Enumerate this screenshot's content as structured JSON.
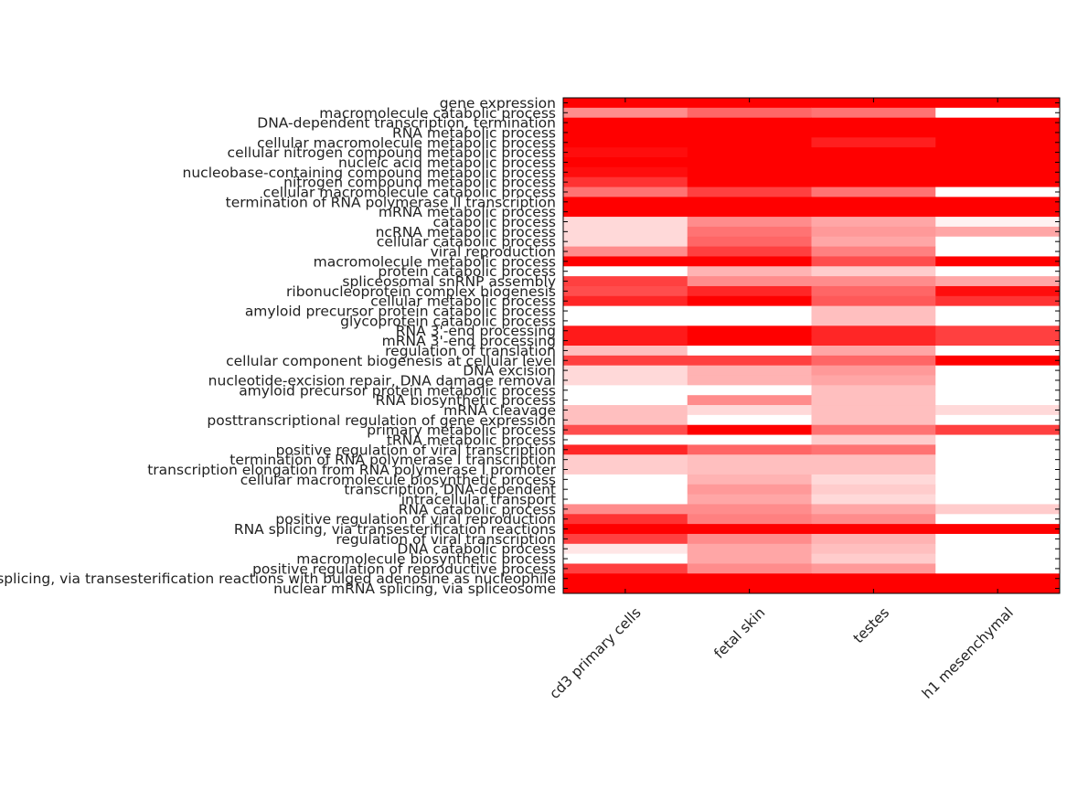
{
  "chart_data": {
    "type": "heatmap",
    "title": "",
    "xlabel": "",
    "ylabel": "",
    "color_low": "#ffffff",
    "color_high": "#ff0000",
    "value_range": [
      0,
      1
    ],
    "grid": false,
    "columns": [
      "cd3 primary cells",
      "fetal skin",
      "testes",
      "h1 mesenchymal"
    ],
    "rows": [
      "gene expression",
      "macromolecule catabolic process",
      "DNA-dependent transcription, termination",
      "RNA metabolic process",
      "cellular macromolecule metabolic process",
      "cellular nitrogen compound metabolic process",
      "nucleic acid metabolic process",
      "nucleobase-containing compound metabolic process",
      "nitrogen compound metabolic process",
      "cellular macromolecule catabolic process",
      "termination of RNA polymerase II transcription",
      "mRNA metabolic process",
      "catabolic process",
      "ncRNA metabolic process",
      "cellular catabolic process",
      "viral reproduction",
      "macromolecule metabolic process",
      "protein catabolic process",
      "spliceosomal snRNP assembly",
      "ribonucleoprotein complex biogenesis",
      "cellular metabolic process",
      "amyloid precursor protein catabolic process",
      "glycoprotein catabolic process",
      "RNA 3'-end processing",
      "mRNA 3'-end processing",
      "regulation of translation",
      "cellular component biogenesis at cellular level",
      "DNA excision",
      "nucleotide-excision repair, DNA damage removal",
      "amyloid precursor protein metabolic process",
      "RNA biosynthetic process",
      "mRNA cleavage",
      "posttranscriptional regulation of gene expression",
      "primary metabolic process",
      "tRNA metabolic process",
      "positive regulation of viral transcription",
      "termination of RNA polymerase I transcription",
      "transcription elongation from RNA polymerase I promoter",
      "cellular macromolecule biosynthetic process",
      "transcription, DNA-dependent",
      "intracellular transport",
      "RNA catabolic process",
      "positive regulation of viral reproduction",
      "RNA splicing, via transesterification reactions",
      "regulation of viral transcription",
      "DNA catabolic process",
      "macromolecule biosynthetic process",
      "positive regulation of reproductive process",
      "RNA splicing, via transesterification reactions with bulged adenosine as nucleophile",
      "nuclear mRNA splicing, via spliceosome"
    ],
    "values": [
      [
        1.0,
        1.0,
        1.0,
        1.0
      ],
      [
        0.45,
        0.6,
        0.55,
        0.0
      ],
      [
        1.0,
        1.0,
        1.0,
        1.0
      ],
      [
        1.0,
        1.0,
        1.0,
        1.0
      ],
      [
        1.0,
        1.0,
        0.88,
        1.0
      ],
      [
        0.95,
        1.0,
        1.0,
        1.0
      ],
      [
        1.0,
        1.0,
        1.0,
        1.0
      ],
      [
        0.95,
        1.0,
        1.0,
        1.0
      ],
      [
        0.8,
        1.0,
        1.0,
        1.0
      ],
      [
        0.55,
        0.75,
        0.55,
        0.0
      ],
      [
        1.0,
        1.0,
        1.0,
        1.0
      ],
      [
        1.0,
        1.0,
        1.0,
        1.0
      ],
      [
        0.15,
        0.45,
        0.35,
        0.05
      ],
      [
        0.15,
        0.55,
        0.4,
        0.35
      ],
      [
        0.15,
        0.6,
        0.35,
        0.0
      ],
      [
        0.45,
        0.75,
        0.5,
        0.0
      ],
      [
        1.0,
        1.0,
        0.7,
        1.0
      ],
      [
        0.0,
        0.3,
        0.2,
        0.0
      ],
      [
        0.75,
        0.45,
        0.45,
        0.35
      ],
      [
        0.7,
        0.85,
        0.6,
        0.95
      ],
      [
        0.85,
        1.0,
        0.65,
        0.8
      ],
      [
        0.0,
        0.0,
        0.25,
        0.0
      ],
      [
        0.0,
        0.0,
        0.25,
        0.0
      ],
      [
        0.9,
        1.0,
        0.85,
        0.75
      ],
      [
        0.9,
        1.0,
        0.85,
        0.75
      ],
      [
        0.25,
        0.0,
        0.35,
        0.0
      ],
      [
        0.75,
        0.75,
        0.6,
        1.0
      ],
      [
        0.15,
        0.3,
        0.4,
        0.0
      ],
      [
        0.15,
        0.3,
        0.35,
        0.0
      ],
      [
        0.0,
        0.0,
        0.25,
        0.0
      ],
      [
        0.0,
        0.45,
        0.25,
        0.0
      ],
      [
        0.25,
        0.15,
        0.25,
        0.15
      ],
      [
        0.25,
        0.0,
        0.25,
        0.0
      ],
      [
        0.7,
        1.0,
        0.55,
        0.75
      ],
      [
        0.0,
        0.0,
        0.2,
        0.0
      ],
      [
        0.85,
        0.6,
        0.55,
        0.0
      ],
      [
        0.2,
        0.25,
        0.25,
        0.0
      ],
      [
        0.2,
        0.25,
        0.25,
        0.0
      ],
      [
        0.0,
        0.3,
        0.15,
        0.0
      ],
      [
        0.0,
        0.4,
        0.2,
        0.0
      ],
      [
        0.0,
        0.35,
        0.15,
        0.0
      ],
      [
        0.45,
        0.45,
        0.35,
        0.2
      ],
      [
        0.8,
        0.5,
        0.45,
        0.0
      ],
      [
        1.0,
        1.0,
        1.0,
        1.0
      ],
      [
        0.75,
        0.45,
        0.3,
        0.0
      ],
      [
        0.1,
        0.35,
        0.25,
        0.0
      ],
      [
        0.0,
        0.35,
        0.2,
        0.0
      ],
      [
        0.75,
        0.45,
        0.4,
        0.0
      ],
      [
        1.0,
        1.0,
        1.0,
        1.0
      ],
      [
        1.0,
        1.0,
        1.0,
        1.0
      ]
    ]
  }
}
